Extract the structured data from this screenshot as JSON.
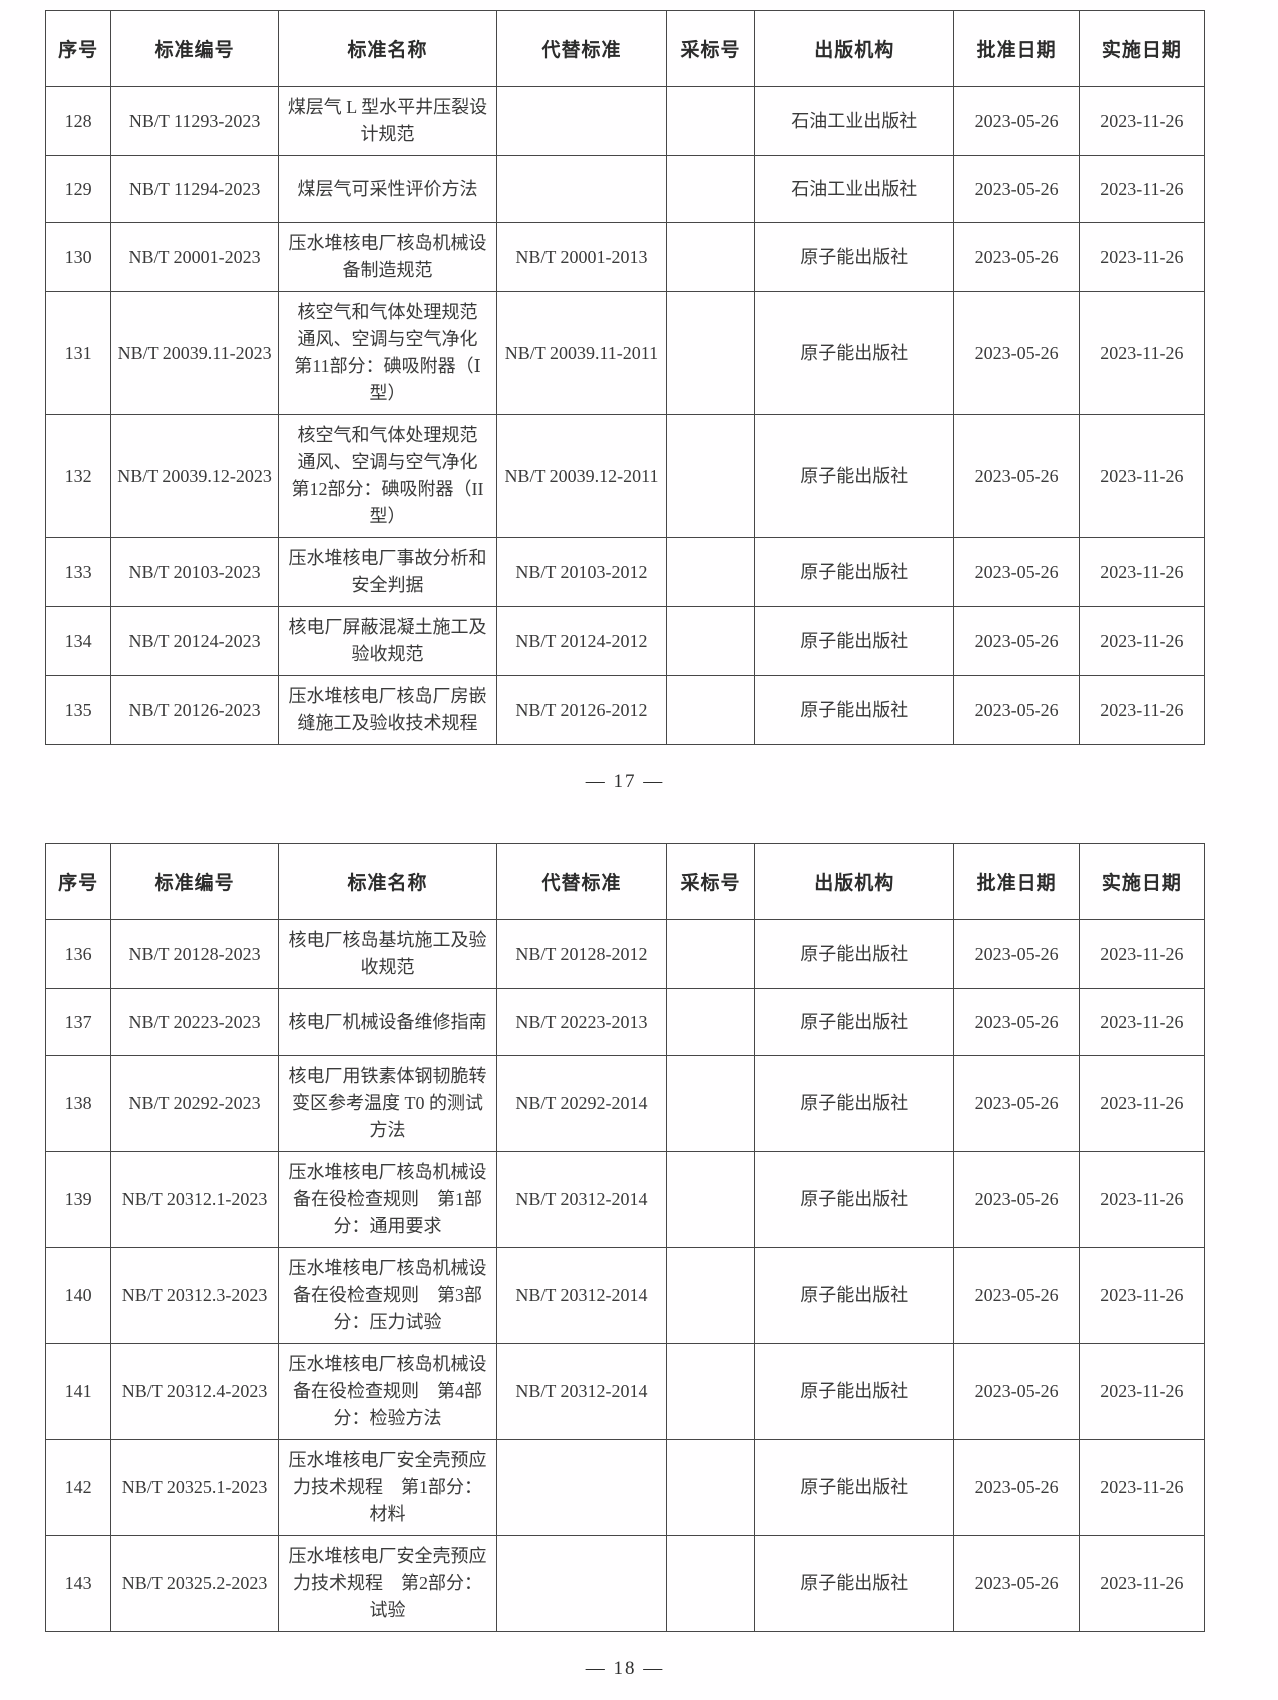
{
  "tables": [
    {
      "columns": [
        "序号",
        "标准编号",
        "标准名称",
        "代替标准",
        "采标号",
        "出版机构",
        "批准日期",
        "实施日期"
      ],
      "rows": [
        [
          "128",
          "NB/T 11293-2023",
          "煤层气 L 型水平井压裂设计规范",
          "",
          "",
          "石油工业出版社",
          "2023-05-26",
          "2023-11-26"
        ],
        [
          "129",
          "NB/T 11294-2023",
          "煤层气可采性评价方法",
          "",
          "",
          "石油工业出版社",
          "2023-05-26",
          "2023-11-26"
        ],
        [
          "130",
          "NB/T 20001-2023",
          "压水堆核电厂核岛机械设备制造规范",
          "NB/T 20001-2013",
          "",
          "原子能出版社",
          "2023-05-26",
          "2023-11-26"
        ],
        [
          "131",
          "NB/T 20039.11-2023",
          "核空气和气体处理规范　通风、空调与空气净化　第11部分：碘吸附器（Ⅰ型）",
          "NB/T 20039.11-2011",
          "",
          "原子能出版社",
          "2023-05-26",
          "2023-11-26"
        ],
        [
          "132",
          "NB/T 20039.12-2023",
          "核空气和气体处理规范　通风、空调与空气净化　第12部分：碘吸附器（II型）",
          "NB/T 20039.12-2011",
          "",
          "原子能出版社",
          "2023-05-26",
          "2023-11-26"
        ],
        [
          "133",
          "NB/T 20103-2023",
          "压水堆核电厂事故分析和安全判据",
          "NB/T 20103-2012",
          "",
          "原子能出版社",
          "2023-05-26",
          "2023-11-26"
        ],
        [
          "134",
          "NB/T 20124-2023",
          "核电厂屏蔽混凝土施工及验收规范",
          "NB/T 20124-2012",
          "",
          "原子能出版社",
          "2023-05-26",
          "2023-11-26"
        ],
        [
          "135",
          "NB/T 20126-2023",
          "压水堆核电厂核岛厂房嵌缝施工及验收技术规程",
          "NB/T 20126-2012",
          "",
          "原子能出版社",
          "2023-05-26",
          "2023-11-26"
        ]
      ],
      "page_label": "— 17 —"
    },
    {
      "columns": [
        "序号",
        "标准编号",
        "标准名称",
        "代替标准",
        "采标号",
        "出版机构",
        "批准日期",
        "实施日期"
      ],
      "rows": [
        [
          "136",
          "NB/T 20128-2023",
          "核电厂核岛基坑施工及验收规范",
          "NB/T 20128-2012",
          "",
          "原子能出版社",
          "2023-05-26",
          "2023-11-26"
        ],
        [
          "137",
          "NB/T 20223-2023",
          "核电厂机械设备维修指南",
          "NB/T 20223-2013",
          "",
          "原子能出版社",
          "2023-05-26",
          "2023-11-26"
        ],
        [
          "138",
          "NB/T 20292-2023",
          "核电厂用铁素体钢韧脆转变区参考温度 T0 的测试方法",
          "NB/T 20292-2014",
          "",
          "原子能出版社",
          "2023-05-26",
          "2023-11-26"
        ],
        [
          "139",
          "NB/T 20312.1-2023",
          "压水堆核电厂核岛机械设备在役检查规则　第1部分：通用要求",
          "NB/T 20312-2014",
          "",
          "原子能出版社",
          "2023-05-26",
          "2023-11-26"
        ],
        [
          "140",
          "NB/T 20312.3-2023",
          "压水堆核电厂核岛机械设备在役检查规则　第3部分：压力试验",
          "NB/T 20312-2014",
          "",
          "原子能出版社",
          "2023-05-26",
          "2023-11-26"
        ],
        [
          "141",
          "NB/T 20312.4-2023",
          "压水堆核电厂核岛机械设备在役检查规则　第4部分：检验方法",
          "NB/T 20312-2014",
          "",
          "原子能出版社",
          "2023-05-26",
          "2023-11-26"
        ],
        [
          "142",
          "NB/T 20325.1-2023",
          "压水堆核电厂安全壳预应力技术规程　第1部分：材料",
          "",
          "",
          "原子能出版社",
          "2023-05-26",
          "2023-11-26"
        ],
        [
          "143",
          "NB/T 20325.2-2023",
          "压水堆核电厂安全壳预应力技术规程　第2部分：试验",
          "",
          "",
          "原子能出版社",
          "2023-05-26",
          "2023-11-26"
        ]
      ],
      "page_label": "— 18 —"
    }
  ]
}
